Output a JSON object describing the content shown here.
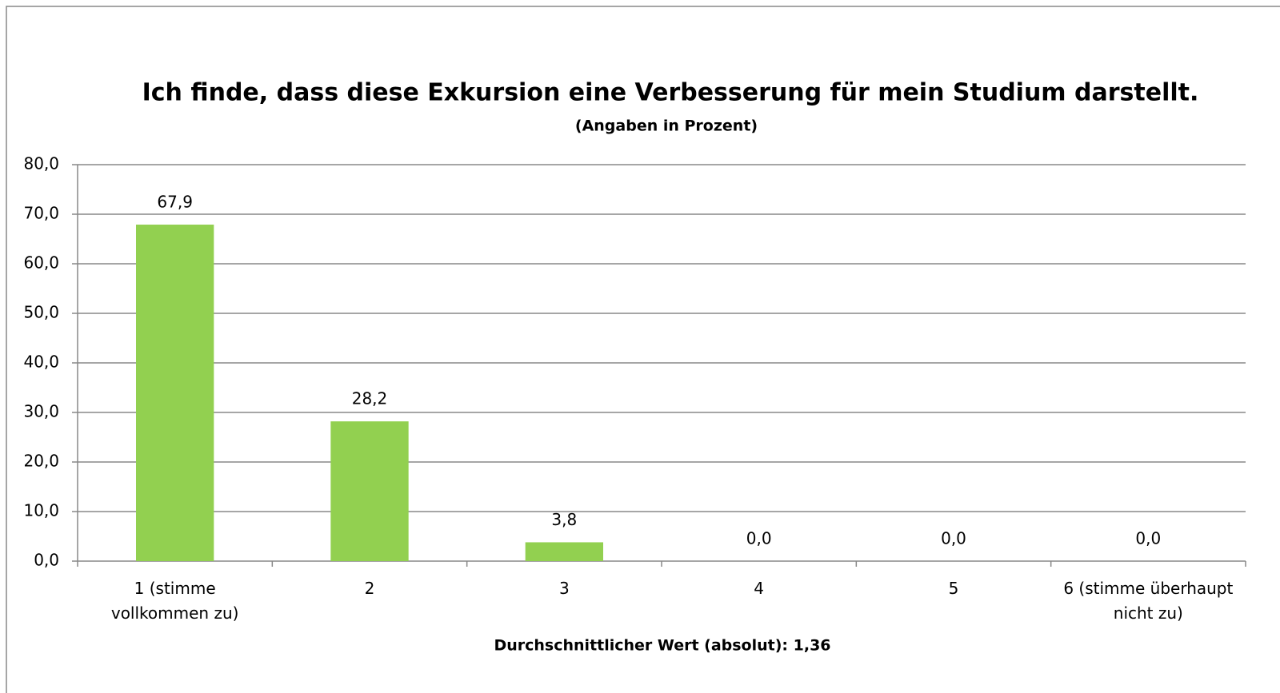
{
  "chart_data": {
    "type": "bar",
    "title": "Ich finde, dass diese Exkursion eine Verbesserung für mein Studium darstellt.",
    "subtitle": "(Angaben in Prozent)",
    "x_label": "Durchschnittlicher Wert (absolut): 1,36",
    "categories": [
      "1 (stimme vollkommen zu)",
      "2",
      "3",
      "4",
      "5",
      "6 (stimme überhaupt nicht zu)"
    ],
    "values": [
      67.9,
      28.2,
      3.8,
      0,
      0,
      0
    ],
    "value_labels": [
      "67,9",
      "28,2",
      "3,8",
      "0,0",
      "0,0",
      "0,0"
    ],
    "color": "#92d050",
    "ylim": [
      0,
      80
    ],
    "yticks": [
      {
        "value": 0,
        "label": "0,0"
      },
      {
        "value": 10,
        "label": "10,0"
      },
      {
        "value": 20,
        "label": "20,0"
      },
      {
        "value": 30,
        "label": "30,0"
      },
      {
        "value": 40,
        "label": "40,0"
      },
      {
        "value": 50,
        "label": "50,0"
      },
      {
        "value": 60,
        "label": "60,0"
      },
      {
        "value": 70,
        "label": "70,0"
      },
      {
        "value": 80,
        "label": "80,0"
      }
    ],
    "grid": true
  }
}
